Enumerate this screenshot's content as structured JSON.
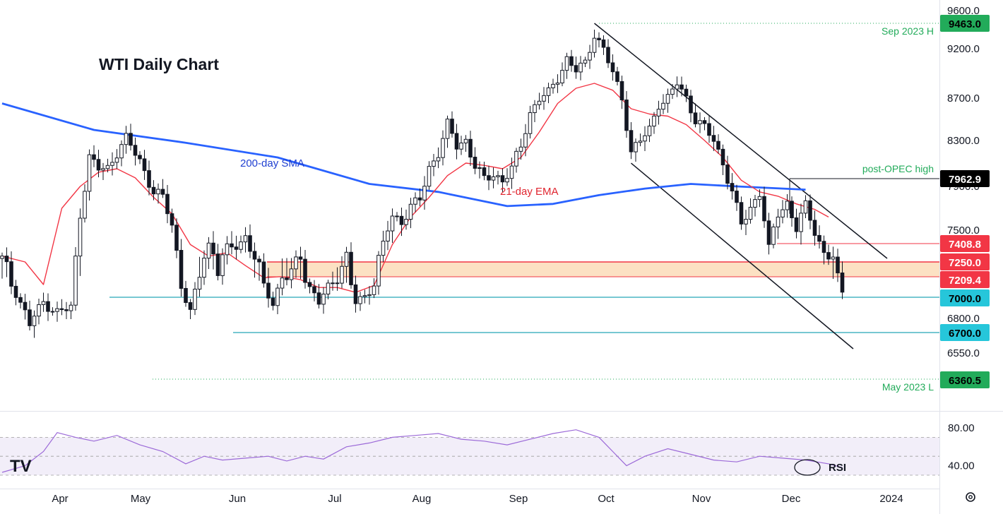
{
  "chart_data": {
    "type": "candlestick",
    "title": "WTI Daily Chart",
    "y_range": [
      6300,
      9640
    ],
    "y_ticks": [
      "9600.0",
      "9200.0",
      "8700.0",
      "8300.0",
      "7900.0",
      "7500.0",
      "7250.0",
      "6800.0",
      "6550.0"
    ],
    "x_ticks": [
      "Apr",
      "May",
      "Jun",
      "Jul",
      "Aug",
      "Sep",
      "Oct",
      "Nov",
      "Dec",
      "2024"
    ],
    "price_path": [
      [
        0,
        7280
      ],
      [
        3,
        7050
      ],
      [
        6,
        6760
      ],
      [
        9,
        6950
      ],
      [
        12,
        6860
      ],
      [
        15,
        6900
      ],
      [
        17,
        7650
      ],
      [
        19,
        8150
      ],
      [
        21,
        8050
      ],
      [
        23,
        8050
      ],
      [
        25,
        8200
      ],
      [
        27,
        8320
      ],
      [
        30,
        8120
      ],
      [
        33,
        7850
      ],
      [
        35,
        7800
      ],
      [
        37,
        7550
      ],
      [
        39,
        7120
      ],
      [
        41,
        6850
      ],
      [
        43,
        7220
      ],
      [
        45,
        7400
      ],
      [
        47,
        7250
      ],
      [
        49,
        7350
      ],
      [
        51,
        7400
      ],
      [
        53,
        7450
      ],
      [
        56,
        7200
      ],
      [
        59,
        6950
      ],
      [
        61,
        7200
      ],
      [
        63,
        7200
      ],
      [
        65,
        7300
      ],
      [
        67,
        7100
      ],
      [
        69,
        6950
      ],
      [
        71,
        7100
      ],
      [
        73,
        7200
      ],
      [
        75,
        7300
      ],
      [
        77,
        6950
      ],
      [
        79,
        7000
      ],
      [
        81,
        7150
      ],
      [
        83,
        7400
      ],
      [
        85,
        7620
      ],
      [
        87,
        7580
      ],
      [
        89,
        7720
      ],
      [
        91,
        7780
      ],
      [
        93,
        8050
      ],
      [
        95,
        8200
      ],
      [
        97,
        8450
      ],
      [
        99,
        8250
      ],
      [
        101,
        8300
      ],
      [
        103,
        8080
      ],
      [
        105,
        7950
      ],
      [
        107,
        8000
      ],
      [
        109,
        7950
      ],
      [
        111,
        8050
      ],
      [
        113,
        8250
      ],
      [
        115,
        8560
      ],
      [
        117,
        8700
      ],
      [
        119,
        8750
      ],
      [
        121,
        8900
      ],
      [
        123,
        9100
      ],
      [
        125,
        8980
      ],
      [
        127,
        9050
      ],
      [
        129,
        9350
      ],
      [
        131,
        9200
      ],
      [
        133,
        8950
      ],
      [
        135,
        8700
      ],
      [
        137,
        8200
      ],
      [
        139,
        8300
      ],
      [
        141,
        8400
      ],
      [
        143,
        8650
      ],
      [
        145,
        8700
      ],
      [
        147,
        8850
      ],
      [
        149,
        8700
      ],
      [
        151,
        8500
      ],
      [
        153,
        8420
      ],
      [
        155,
        8300
      ],
      [
        157,
        8100
      ],
      [
        159,
        7850
      ],
      [
        161,
        7550
      ],
      [
        163,
        7700
      ],
      [
        165,
        7850
      ],
      [
        167,
        7350
      ],
      [
        169,
        7650
      ],
      [
        171,
        7750
      ],
      [
        173,
        7520
      ],
      [
        175,
        7720
      ],
      [
        177,
        7500
      ],
      [
        179,
        7330
      ],
      [
        181,
        7280
      ],
      [
        183,
        7050
      ]
    ],
    "ema21_path": [
      [
        0,
        7300
      ],
      [
        5,
        7250
      ],
      [
        9,
        7130
      ],
      [
        13,
        7700
      ],
      [
        17,
        7900
      ],
      [
        21,
        8020
      ],
      [
        25,
        8050
      ],
      [
        29,
        7970
      ],
      [
        33,
        7800
      ],
      [
        37,
        7650
      ],
      [
        41,
        7400
      ],
      [
        45,
        7300
      ],
      [
        49,
        7330
      ],
      [
        53,
        7240
      ],
      [
        57,
        7200
      ],
      [
        61,
        7210
      ],
      [
        65,
        7180
      ],
      [
        69,
        7100
      ],
      [
        73,
        7100
      ],
      [
        77,
        7050
      ],
      [
        81,
        7120
      ],
      [
        85,
        7400
      ],
      [
        89,
        7620
      ],
      [
        93,
        7800
      ],
      [
        97,
        7990
      ],
      [
        101,
        8100
      ],
      [
        105,
        8080
      ],
      [
        109,
        8050
      ],
      [
        113,
        8150
      ],
      [
        117,
        8380
      ],
      [
        121,
        8650
      ],
      [
        125,
        8800
      ],
      [
        129,
        8850
      ],
      [
        133,
        8780
      ],
      [
        137,
        8600
      ],
      [
        141,
        8550
      ],
      [
        145,
        8530
      ],
      [
        149,
        8450
      ],
      [
        153,
        8300
      ],
      [
        157,
        8150
      ],
      [
        161,
        7950
      ],
      [
        165,
        7850
      ],
      [
        169,
        7810
      ],
      [
        173,
        7740
      ],
      [
        177,
        7690
      ],
      [
        180,
        7620
      ]
    ],
    "sma200_path": [
      [
        0,
        8650
      ],
      [
        20,
        8400
      ],
      [
        40,
        8280
      ],
      [
        60,
        8150
      ],
      [
        80,
        7920
      ],
      [
        95,
        7850
      ],
      [
        110,
        7720
      ],
      [
        120,
        7740
      ],
      [
        130,
        7820
      ],
      [
        140,
        7880
      ],
      [
        150,
        7920
      ],
      [
        160,
        7900
      ],
      [
        175,
        7870
      ]
    ],
    "rsi": {
      "label": "RSI",
      "ticks": [
        "80.00",
        "40.00"
      ],
      "path": [
        [
          0,
          33
        ],
        [
          5,
          40
        ],
        [
          9,
          55
        ],
        [
          12,
          75
        ],
        [
          16,
          70
        ],
        [
          20,
          66
        ],
        [
          25,
          72
        ],
        [
          30,
          62
        ],
        [
          35,
          55
        ],
        [
          40,
          42
        ],
        [
          44,
          50
        ],
        [
          48,
          46
        ],
        [
          53,
          48
        ],
        [
          58,
          50
        ],
        [
          62,
          45
        ],
        [
          66,
          50
        ],
        [
          70,
          47
        ],
        [
          75,
          60
        ],
        [
          80,
          64
        ],
        [
          85,
          70
        ],
        [
          90,
          72
        ],
        [
          95,
          74
        ],
        [
          100,
          68
        ],
        [
          105,
          66
        ],
        [
          110,
          62
        ],
        [
          115,
          68
        ],
        [
          120,
          74
        ],
        [
          125,
          78
        ],
        [
          130,
          70
        ],
        [
          133,
          55
        ],
        [
          136,
          40
        ],
        [
          140,
          50
        ],
        [
          145,
          58
        ],
        [
          150,
          52
        ],
        [
          155,
          46
        ],
        [
          160,
          44
        ],
        [
          165,
          50
        ],
        [
          170,
          48
        ],
        [
          175,
          46
        ],
        [
          180,
          42
        ],
        [
          183,
          38
        ]
      ]
    },
    "annotations": {
      "sma_label": "200-day SMA",
      "ema_label": "21-day EMA",
      "sep_high": "Sep 2023 H",
      "may_low": "May 2023 L",
      "post_opec": "post-OPEC high"
    },
    "price_tags": [
      {
        "label": "9463.0",
        "value": 9463,
        "color": "#22ab5a",
        "text_color": "#000000"
      },
      {
        "label": "7962.9",
        "value": 7962.9,
        "color": "#000000",
        "text_color": "#ffffff"
      },
      {
        "label": "7408.8",
        "value": 7408.8,
        "color": "#f23645",
        "text_color": "#ffffff"
      },
      {
        "label": "7250.0",
        "value": 7250,
        "color": "#f23645",
        "text_color": "#ffffff"
      },
      {
        "label": "7209.4",
        "value": 7209.4,
        "color": "#f23645",
        "text_color": "#ffffff"
      },
      {
        "label": "7000.0",
        "value": 7000,
        "color": "#26c6da",
        "text_color": "#000000"
      },
      {
        "label": "6700.0",
        "value": 6700,
        "color": "#26c6da",
        "text_color": "#000000"
      },
      {
        "label": "6360.5",
        "value": 6360.5,
        "color": "#22ab5a",
        "text_color": "#000000"
      }
    ],
    "levels": {
      "resistance_zone": [
        7209.4,
        7250
      ],
      "support_1": 7000,
      "support_2": 6700,
      "sep_high": 9463,
      "may_low": 6360.5,
      "post_opec_high": 7962.9,
      "recent_high": 7408.8
    },
    "channel": {
      "upper": [
        [
          129,
          9463
        ],
        [
          189,
          7400
        ]
      ],
      "lower": [
        [
          137,
          8100
        ],
        [
          186,
          6600
        ]
      ]
    },
    "colors": {
      "up": "#000000",
      "down": "#000000",
      "ema": "#f23645",
      "sma": "#2962ff",
      "rsi": "#9c6ad8"
    }
  },
  "logo": "TV"
}
